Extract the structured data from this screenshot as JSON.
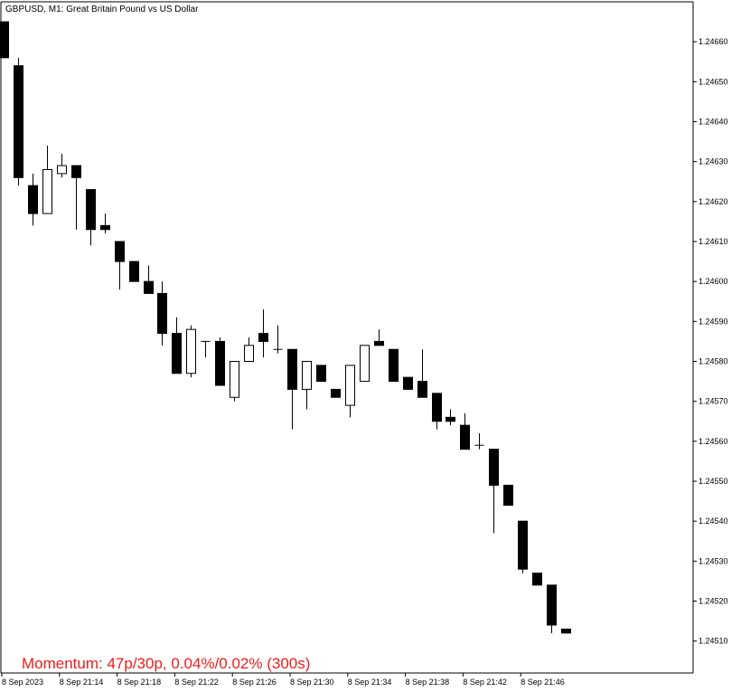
{
  "window": {
    "title": "GBPUSD, M1:  Great Britain Pound vs US Dollar"
  },
  "momentum_text": "Momentum: 47p/30p, 0.04%/0.02% (300s)",
  "colors": {
    "background": "#ffffff",
    "axis": "#000000",
    "bull_fill": "#ffffff",
    "bear_fill": "#000000",
    "candle_outline": "#000000",
    "momentum_text": "#ee1c1c"
  },
  "chart_data": {
    "type": "candlestick",
    "symbol": "GBPUSD",
    "timeframe": "M1",
    "title": "GBPUSD, M1:  Great Britain Pound vs US Dollar",
    "ylim": [
      1.24502,
      1.2467
    ],
    "y_ticks": [
      "1.24660",
      "1.24650",
      "1.24640",
      "1.24630",
      "1.24620",
      "1.24610",
      "1.24600",
      "1.24590",
      "1.24580",
      "1.24570",
      "1.24560",
      "1.24550",
      "1.24540",
      "1.24530",
      "1.24520",
      "1.24510"
    ],
    "x_ticks": [
      "8 Sep 2023",
      "8 Sep 21:14",
      "8 Sep 21:18",
      "8 Sep 21:22",
      "8 Sep 21:26",
      "8 Sep 21:30",
      "8 Sep 21:34",
      "8 Sep 21:38",
      "8 Sep 21:42",
      "8 Sep 21:46"
    ],
    "grid": false,
    "candles": [
      {
        "o": 1.24665,
        "h": 1.24665,
        "l": 1.24656,
        "c": 1.24656
      },
      {
        "o": 1.24654,
        "h": 1.24656,
        "l": 1.24624,
        "c": 1.24626
      },
      {
        "o": 1.24624,
        "h": 1.24627,
        "l": 1.24614,
        "c": 1.24617
      },
      {
        "o": 1.24617,
        "h": 1.24634,
        "l": 1.24617,
        "c": 1.24628
      },
      {
        "o": 1.24627,
        "h": 1.24632,
        "l": 1.24626,
        "c": 1.24629
      },
      {
        "o": 1.24629,
        "h": 1.24629,
        "l": 1.24613,
        "c": 1.24626
      },
      {
        "o": 1.24623,
        "h": 1.24623,
        "l": 1.24609,
        "c": 1.24613
      },
      {
        "o": 1.24614,
        "h": 1.24617,
        "l": 1.24612,
        "c": 1.24613
      },
      {
        "o": 1.2461,
        "h": 1.2461,
        "l": 1.24598,
        "c": 1.24605
      },
      {
        "o": 1.24605,
        "h": 1.24605,
        "l": 1.246,
        "c": 1.246
      },
      {
        "o": 1.246,
        "h": 1.24604,
        "l": 1.24597,
        "c": 1.24597
      },
      {
        "o": 1.24597,
        "h": 1.246,
        "l": 1.24584,
        "c": 1.24587
      },
      {
        "o": 1.24587,
        "h": 1.24591,
        "l": 1.24577,
        "c": 1.24577
      },
      {
        "o": 1.24577,
        "h": 1.24589,
        "l": 1.24576,
        "c": 1.24588
      },
      {
        "o": 1.24585,
        "h": 1.24585,
        "l": 1.24581,
        "c": 1.24585
      },
      {
        "o": 1.24585,
        "h": 1.24586,
        "l": 1.24574,
        "c": 1.24574
      },
      {
        "o": 1.24571,
        "h": 1.2458,
        "l": 1.2457,
        "c": 1.2458
      },
      {
        "o": 1.2458,
        "h": 1.24586,
        "l": 1.2458,
        "c": 1.24584
      },
      {
        "o": 1.24587,
        "h": 1.24593,
        "l": 1.24581,
        "c": 1.24585
      },
      {
        "o": 1.24583,
        "h": 1.24589,
        "l": 1.24582,
        "c": 1.24583
      },
      {
        "o": 1.24583,
        "h": 1.24583,
        "l": 1.24563,
        "c": 1.24573
      },
      {
        "o": 1.24573,
        "h": 1.2458,
        "l": 1.24568,
        "c": 1.2458
      },
      {
        "o": 1.24579,
        "h": 1.24579,
        "l": 1.24575,
        "c": 1.24575
      },
      {
        "o": 1.24573,
        "h": 1.24573,
        "l": 1.24571,
        "c": 1.24571
      },
      {
        "o": 1.24569,
        "h": 1.24579,
        "l": 1.24566,
        "c": 1.24579
      },
      {
        "o": 1.24575,
        "h": 1.24584,
        "l": 1.24575,
        "c": 1.24584
      },
      {
        "o": 1.24585,
        "h": 1.24588,
        "l": 1.24584,
        "c": 1.24584
      },
      {
        "o": 1.24583,
        "h": 1.24583,
        "l": 1.24575,
        "c": 1.24575
      },
      {
        "o": 1.24576,
        "h": 1.24576,
        "l": 1.24573,
        "c": 1.24573
      },
      {
        "o": 1.24575,
        "h": 1.24583,
        "l": 1.24571,
        "c": 1.24571
      },
      {
        "o": 1.24572,
        "h": 1.24572,
        "l": 1.24563,
        "c": 1.24565
      },
      {
        "o": 1.24566,
        "h": 1.24568,
        "l": 1.24564,
        "c": 1.24565
      },
      {
        "o": 1.24564,
        "h": 1.24567,
        "l": 1.24558,
        "c": 1.24558
      },
      {
        "o": 1.24559,
        "h": 1.24562,
        "l": 1.24558,
        "c": 1.24559
      },
      {
        "o": 1.24558,
        "h": 1.24558,
        "l": 1.24537,
        "c": 1.24549
      },
      {
        "o": 1.24549,
        "h": 1.24549,
        "l": 1.24544,
        "c": 1.24544
      },
      {
        "o": 1.2454,
        "h": 1.2454,
        "l": 1.24527,
        "c": 1.24528
      },
      {
        "o": 1.24527,
        "h": 1.24527,
        "l": 1.24524,
        "c": 1.24524
      },
      {
        "o": 1.24524,
        "h": 1.24524,
        "l": 1.24512,
        "c": 1.24514
      },
      {
        "o": 1.24513,
        "h": 1.24513,
        "l": 1.24512,
        "c": 1.24512
      }
    ]
  }
}
